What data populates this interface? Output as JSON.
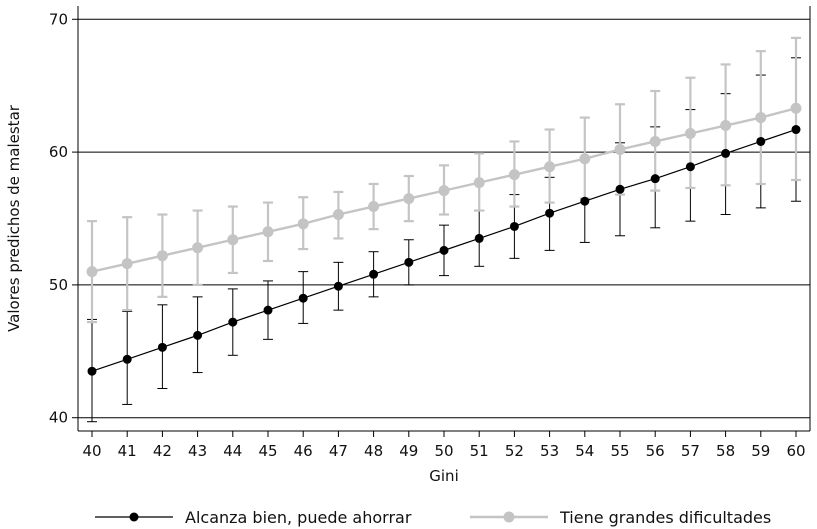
{
  "chart_data": {
    "type": "line",
    "xlabel": "Gini",
    "ylabel": "Valores predichos de malestar",
    "xlim": [
      40,
      60
    ],
    "ylim": [
      39,
      71
    ],
    "y_ticks": [
      40,
      50,
      60,
      70
    ],
    "x": [
      40,
      41,
      42,
      43,
      44,
      45,
      46,
      47,
      48,
      49,
      50,
      51,
      52,
      53,
      54,
      55,
      56,
      57,
      58,
      59,
      60
    ],
    "grid": "horizontal",
    "legend_position": "bottom",
    "series": [
      {
        "name": "Alcanza bien, puede ahorrar",
        "color": "#000000",
        "y": [
          43.5,
          44.4,
          45.3,
          46.2,
          47.2,
          48.1,
          49.0,
          49.9,
          50.8,
          51.7,
          52.6,
          53.5,
          54.4,
          55.4,
          56.3,
          57.2,
          58.0,
          58.9,
          59.9,
          60.8,
          61.7
        ],
        "lower": [
          39.7,
          41.0,
          42.2,
          43.4,
          44.7,
          45.9,
          47.1,
          48.1,
          49.1,
          50.0,
          50.7,
          51.4,
          52.0,
          52.6,
          53.2,
          53.7,
          54.3,
          54.8,
          55.3,
          55.8,
          56.3
        ],
        "upper": [
          47.4,
          48.0,
          48.5,
          49.1,
          49.7,
          50.3,
          51.0,
          51.7,
          52.5,
          53.4,
          54.5,
          55.6,
          56.8,
          58.1,
          59.4,
          60.7,
          61.9,
          63.2,
          64.4,
          65.8,
          67.1
        ]
      },
      {
        "name": "Tiene grandes dificultades",
        "color": "#c4c4c4",
        "y": [
          51.0,
          51.6,
          52.2,
          52.8,
          53.4,
          54.0,
          54.6,
          55.3,
          55.9,
          56.5,
          57.1,
          57.7,
          58.3,
          58.9,
          59.5,
          60.2,
          60.8,
          61.4,
          62.0,
          62.6,
          63.3
        ],
        "lower": [
          47.2,
          48.1,
          49.1,
          50.0,
          50.9,
          51.8,
          52.7,
          53.5,
          54.2,
          54.8,
          55.3,
          55.6,
          55.9,
          56.2,
          56.5,
          56.8,
          57.1,
          57.3,
          57.5,
          57.6,
          57.9
        ],
        "upper": [
          54.8,
          55.1,
          55.3,
          55.6,
          55.9,
          56.2,
          56.6,
          57.0,
          57.6,
          58.2,
          59.0,
          59.9,
          60.8,
          61.7,
          62.6,
          63.6,
          64.6,
          65.6,
          66.6,
          67.6,
          68.6
        ]
      }
    ]
  }
}
